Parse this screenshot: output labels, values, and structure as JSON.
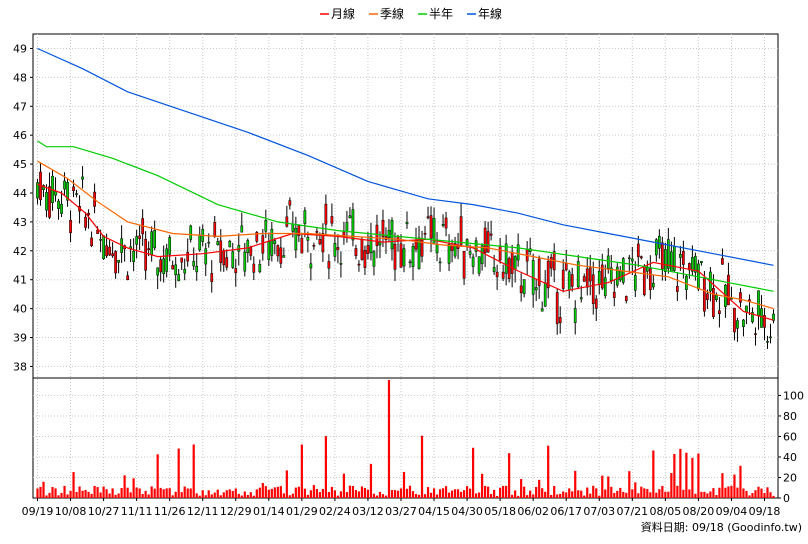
{
  "legend": [
    {
      "name": "月線",
      "color": "#ff0000"
    },
    {
      "name": "季線",
      "color": "#ff6600"
    },
    {
      "name": "半年",
      "color": "#00cc00"
    },
    {
      "name": "年線",
      "color": "#0055dd"
    }
  ],
  "source_label": "資料日期: 09/18 (Goodinfo.tw)",
  "chart_data": [
    {
      "type": "candlestick",
      "y_ticks": [
        38,
        39,
        40,
        41,
        42,
        43,
        44,
        45,
        46,
        47,
        48,
        49
      ],
      "ylim": [
        37.6,
        49.5
      ],
      "x_tick_labels": [
        "09/19",
        "10/08",
        "10/27",
        "11/11",
        "11/26",
        "12/11",
        "12/29",
        "01/14",
        "01/29",
        "02/24",
        "03/12",
        "03/27",
        "04/15",
        "04/30",
        "05/18",
        "06/02",
        "06/17",
        "07/03",
        "07/21",
        "08/05",
        "08/20",
        "09/04",
        "09/18"
      ],
      "series": [
        {
          "name": "月線",
          "color": "#ff0000",
          "x": [
            0,
            8,
            16,
            22,
            30,
            40,
            55,
            70,
            85,
            100,
            115,
            130,
            145,
            160,
            175,
            190,
            205,
            220,
            235,
            245
          ],
          "values": [
            44.3,
            44.0,
            43.3,
            42.5,
            42.1,
            41.8,
            41.9,
            42.1,
            42.6,
            42.5,
            42.3,
            42.4,
            42.1,
            41.3,
            40.6,
            40.9,
            41.6,
            41.3,
            39.9,
            39.6
          ]
        },
        {
          "name": "季線",
          "color": "#ff6600",
          "x": [
            0,
            10,
            20,
            30,
            45,
            60,
            75,
            90,
            105,
            120,
            135,
            150,
            165,
            180,
            195,
            210,
            225,
            235,
            245
          ],
          "values": [
            45.1,
            44.5,
            43.7,
            43.0,
            42.6,
            42.5,
            42.6,
            42.6,
            42.5,
            42.4,
            42.2,
            42.1,
            41.8,
            41.5,
            41.3,
            41.1,
            40.5,
            40.3,
            40.0
          ]
        },
        {
          "name": "半年",
          "color": "#00cc00",
          "x": [
            0,
            3,
            12,
            25,
            40,
            60,
            80,
            100,
            120,
            140,
            160,
            180,
            200,
            220,
            245
          ],
          "values": [
            45.8,
            45.6,
            45.6,
            45.2,
            44.6,
            43.6,
            43.0,
            42.7,
            42.5,
            42.3,
            42.1,
            41.8,
            41.5,
            41.1,
            40.6
          ]
        },
        {
          "name": "年線",
          "color": "#0055dd",
          "x": [
            0,
            15,
            30,
            50,
            70,
            90,
            110,
            130,
            145,
            160,
            175,
            190,
            205,
            225,
            245
          ],
          "values": [
            49.0,
            48.3,
            47.5,
            46.8,
            46.1,
            45.3,
            44.4,
            43.8,
            43.6,
            43.3,
            42.9,
            42.6,
            42.3,
            41.9,
            41.5
          ]
        }
      ]
    },
    {
      "type": "bar",
      "y_ticks": [
        0,
        20,
        40,
        60,
        80,
        100
      ],
      "ylim": [
        0,
        117
      ],
      "color": "#ff0000"
    }
  ]
}
